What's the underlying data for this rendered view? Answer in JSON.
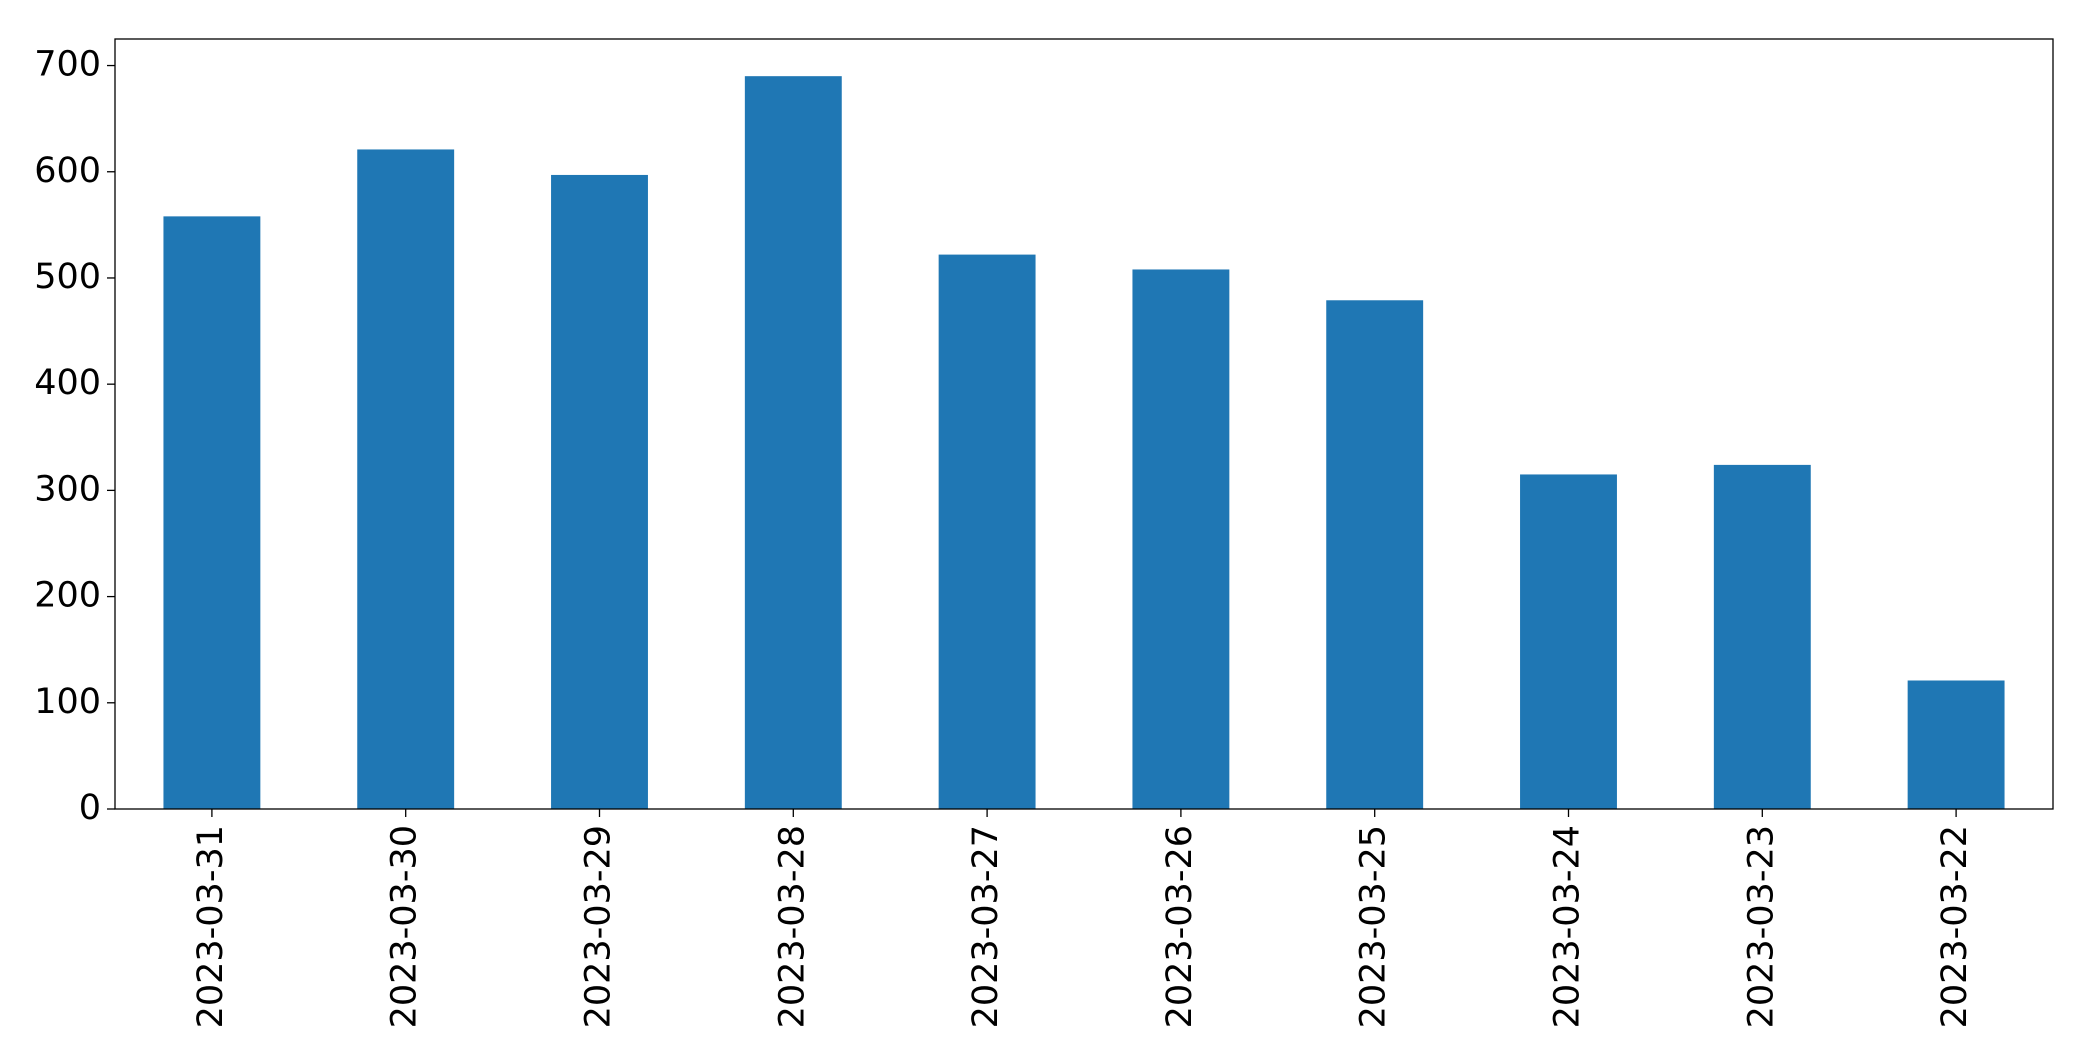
{
  "chart_data": {
    "type": "bar",
    "categories": [
      "2023-03-31",
      "2023-03-30",
      "2023-03-29",
      "2023-03-28",
      "2023-03-27",
      "2023-03-26",
      "2023-03-25",
      "2023-03-24",
      "2023-03-23",
      "2023-03-22"
    ],
    "values": [
      558,
      621,
      597,
      690,
      522,
      508,
      479,
      315,
      324,
      121
    ],
    "color": "#1f77b4",
    "ylim": [
      0,
      725
    ],
    "yticks": [
      0,
      100,
      200,
      300,
      400,
      500,
      600,
      700
    ],
    "grid": false
  }
}
